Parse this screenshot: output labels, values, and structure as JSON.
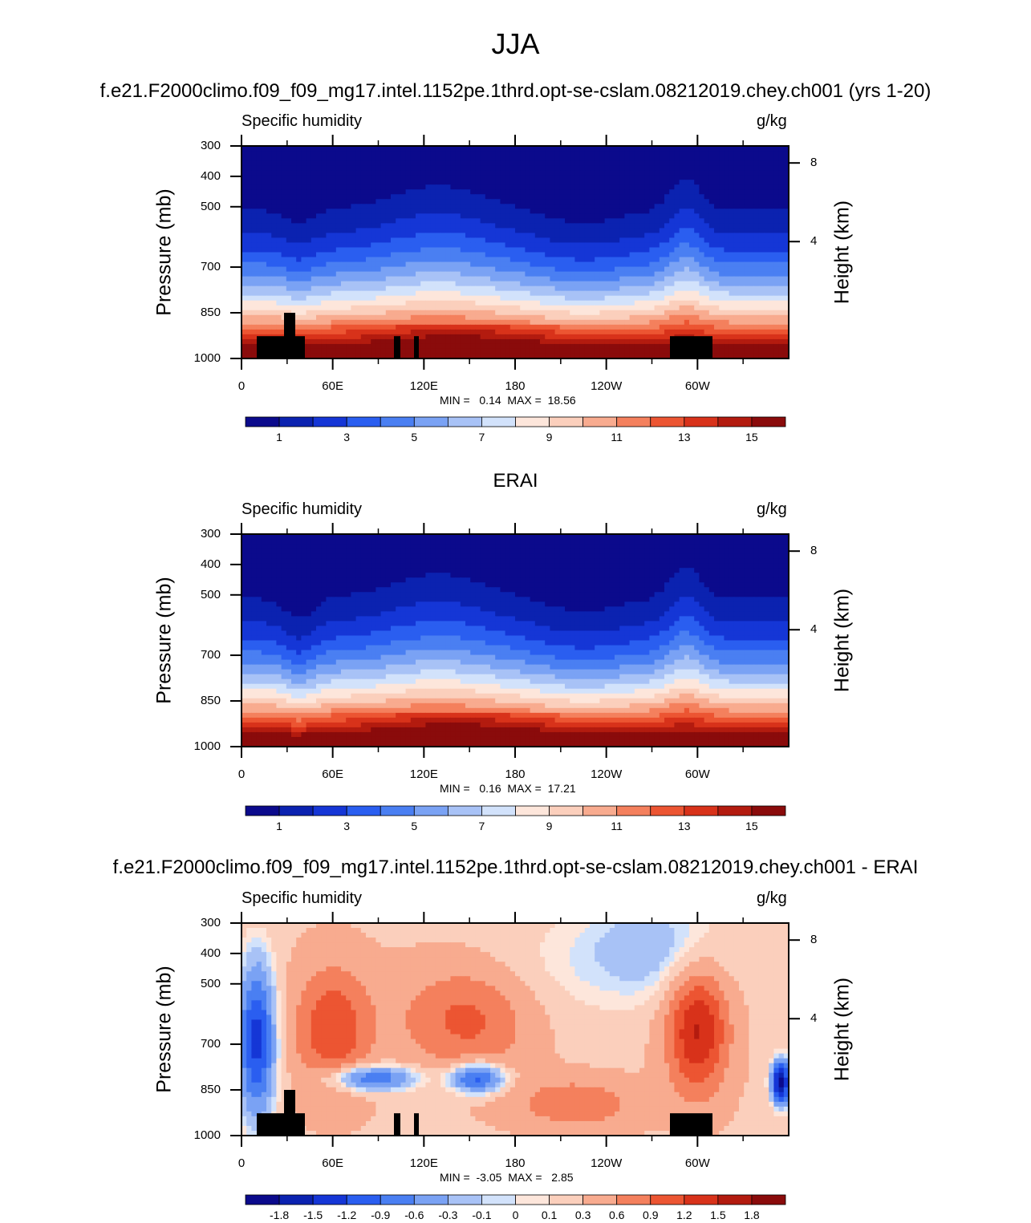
{
  "title": "JJA",
  "panels": [
    {
      "heading": "f.e21.F2000climo.f09_f09_mg17.intel.1152pe.1thrd.opt-se-cslam.08212019.chey.ch001 (yrs 1-20)",
      "left_label": "Specific humidity",
      "right_label": "g/kg",
      "minmax": "MIN =   0.14  MAX =  18.56",
      "kind": "abs"
    },
    {
      "heading": "ERAI",
      "left_label": "Specific humidity",
      "right_label": "g/kg",
      "minmax": "MIN =   0.16  MAX =  17.21",
      "kind": "abs"
    },
    {
      "heading": "f.e21.F2000climo.f09_f09_mg17.intel.1152pe.1thrd.opt-se-cslam.08212019.chey.ch001 - ERAI",
      "left_label": "Specific humidity",
      "right_label": "g/kg",
      "minmax": "MIN =  -3.05  MAX =   2.85",
      "kind": "diff"
    }
  ],
  "axes": {
    "ylabel": "Pressure (mb)",
    "ylabel_right": "Height (km)",
    "pressure_ticks": [
      "300",
      "400",
      "500",
      "700",
      "850",
      "1000"
    ],
    "height_ticks": [
      "8",
      "4"
    ],
    "lon_ticks": [
      "0",
      "60E",
      "120E",
      "180",
      "120W",
      "60W"
    ]
  },
  "colorbars": {
    "abs": {
      "labels": [
        "1",
        "3",
        "5",
        "7",
        "9",
        "11",
        "13",
        "15"
      ],
      "colors": [
        "#0b0a8c",
        "#0b22b0",
        "#1536d6",
        "#2a5ef0",
        "#4a7ff2",
        "#7aa2f4",
        "#a8c2f6",
        "#d2e2fb",
        "#fde6db",
        "#fbcfbc",
        "#f8ab8f",
        "#f4805d",
        "#ec5532",
        "#d8321a",
        "#b31b0f",
        "#8a0b0b"
      ]
    },
    "diff": {
      "labels": [
        "-1.8",
        "-1.5",
        "-1.2",
        "-0.9",
        "-0.6",
        "-0.3",
        "-0.1",
        "0",
        "0.1",
        "0.3",
        "0.6",
        "0.9",
        "1.2",
        "1.5",
        "1.8"
      ],
      "colors": [
        "#0b0a8c",
        "#0b22b0",
        "#1536d6",
        "#2a5ef0",
        "#4a7ff2",
        "#7aa2f4",
        "#a8c2f6",
        "#d2e2fb",
        "#fde6db",
        "#fbcfbc",
        "#f8ab8f",
        "#f4805d",
        "#ec5532",
        "#d8321a",
        "#b31b0f",
        "#8a0b0b"
      ]
    }
  },
  "chart_data": [
    {
      "type": "heatmap",
      "title": "f.e21.F2000climo.f09_f09_mg17.intel.1152pe.1thrd.opt-se-cslam.08212019.chey.ch001 (yrs 1-20)",
      "variable": "Specific humidity",
      "units": "g/kg",
      "x": "longitude",
      "y": "pressure (mb)",
      "ylim": [
        1000,
        300
      ],
      "min": 0.14,
      "max": 18.56,
      "contour_levels": [
        1,
        2,
        3,
        4,
        5,
        6,
        7,
        8,
        9,
        10,
        11,
        12,
        13,
        14,
        15
      ]
    },
    {
      "type": "heatmap",
      "title": "ERAI",
      "variable": "Specific humidity",
      "units": "g/kg",
      "x": "longitude",
      "y": "pressure (mb)",
      "ylim": [
        1000,
        300
      ],
      "min": 0.16,
      "max": 17.21,
      "contour_levels": [
        1,
        2,
        3,
        4,
        5,
        6,
        7,
        8,
        9,
        10,
        11,
        12,
        13,
        14,
        15
      ]
    },
    {
      "type": "heatmap",
      "title": "f.e21.F2000climo.f09_f09_mg17.intel.1152pe.1thrd.opt-se-cslam.08212019.chey.ch001 - ERAI",
      "variable": "Specific humidity",
      "units": "g/kg",
      "x": "longitude",
      "y": "pressure (mb)",
      "ylim": [
        1000,
        300
      ],
      "min": -3.05,
      "max": 2.85,
      "contour_levels": [
        -1.8,
        -1.5,
        -1.2,
        -0.9,
        -0.6,
        -0.3,
        -0.1,
        0,
        0.1,
        0.3,
        0.6,
        0.9,
        1.2,
        1.5,
        1.8
      ]
    }
  ]
}
